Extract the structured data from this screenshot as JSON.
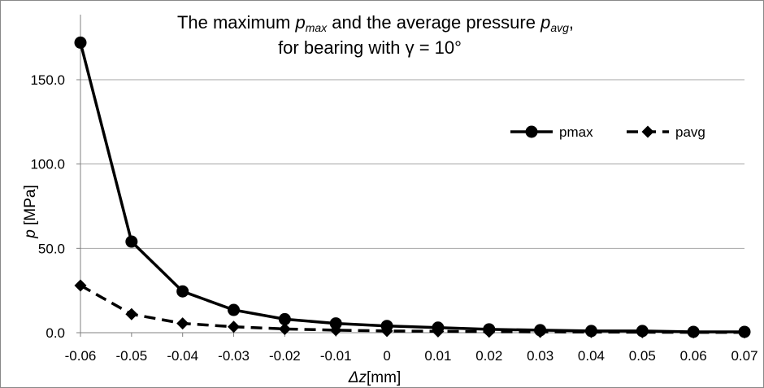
{
  "chart_data": {
    "type": "line",
    "title": {
      "line1_pre": "The maximum ",
      "line1_pmax_p": "p",
      "line1_pmax_sub": "max",
      "line1_mid": " and the average pressure ",
      "line1_pavg_p": "p",
      "line1_pavg_sub": "avg",
      "line1_post": ",",
      "line2": "for bearing with γ = 10°"
    },
    "xlabel": {
      "var": "Δz",
      "unit": "[mm]"
    },
    "ylabel": {
      "var": "p",
      "unit": " [MPa]"
    },
    "x": [
      -0.06,
      -0.05,
      -0.04,
      -0.03,
      -0.02,
      -0.01,
      0,
      0.01,
      0.02,
      0.03,
      0.04,
      0.05,
      0.06,
      0.07
    ],
    "x_tick_labels": [
      "-0.06",
      "-0.05",
      "-0.04",
      "-0.03",
      "-0.02",
      "-0.01",
      "0",
      "0.01",
      "0.02",
      "0.03",
      "0.04",
      "0.05",
      "0.06",
      "0.07"
    ],
    "ylim": [
      0,
      175
    ],
    "y_ticks": [
      0,
      50,
      100,
      150
    ],
    "y_tick_labels": [
      "0.0",
      "50.0",
      "100.0",
      "150.0"
    ],
    "grid": "horizontal",
    "legend_position": "top-right",
    "series": [
      {
        "name": "pmax",
        "style": "solid",
        "marker": "circle",
        "color": "#000000",
        "values": [
          172,
          54,
          24.5,
          13.5,
          8,
          5.5,
          4,
          3,
          2,
          1.5,
          1,
          1,
          0.5,
          0.5
        ]
      },
      {
        "name": "pavg",
        "style": "dashed",
        "marker": "diamond",
        "color": "#000000",
        "values": [
          28,
          11,
          5.5,
          3.5,
          2.2,
          1.5,
          1,
          0.8,
          0.6,
          0.5,
          0.4,
          0.3,
          0.2,
          0.2
        ]
      }
    ]
  }
}
